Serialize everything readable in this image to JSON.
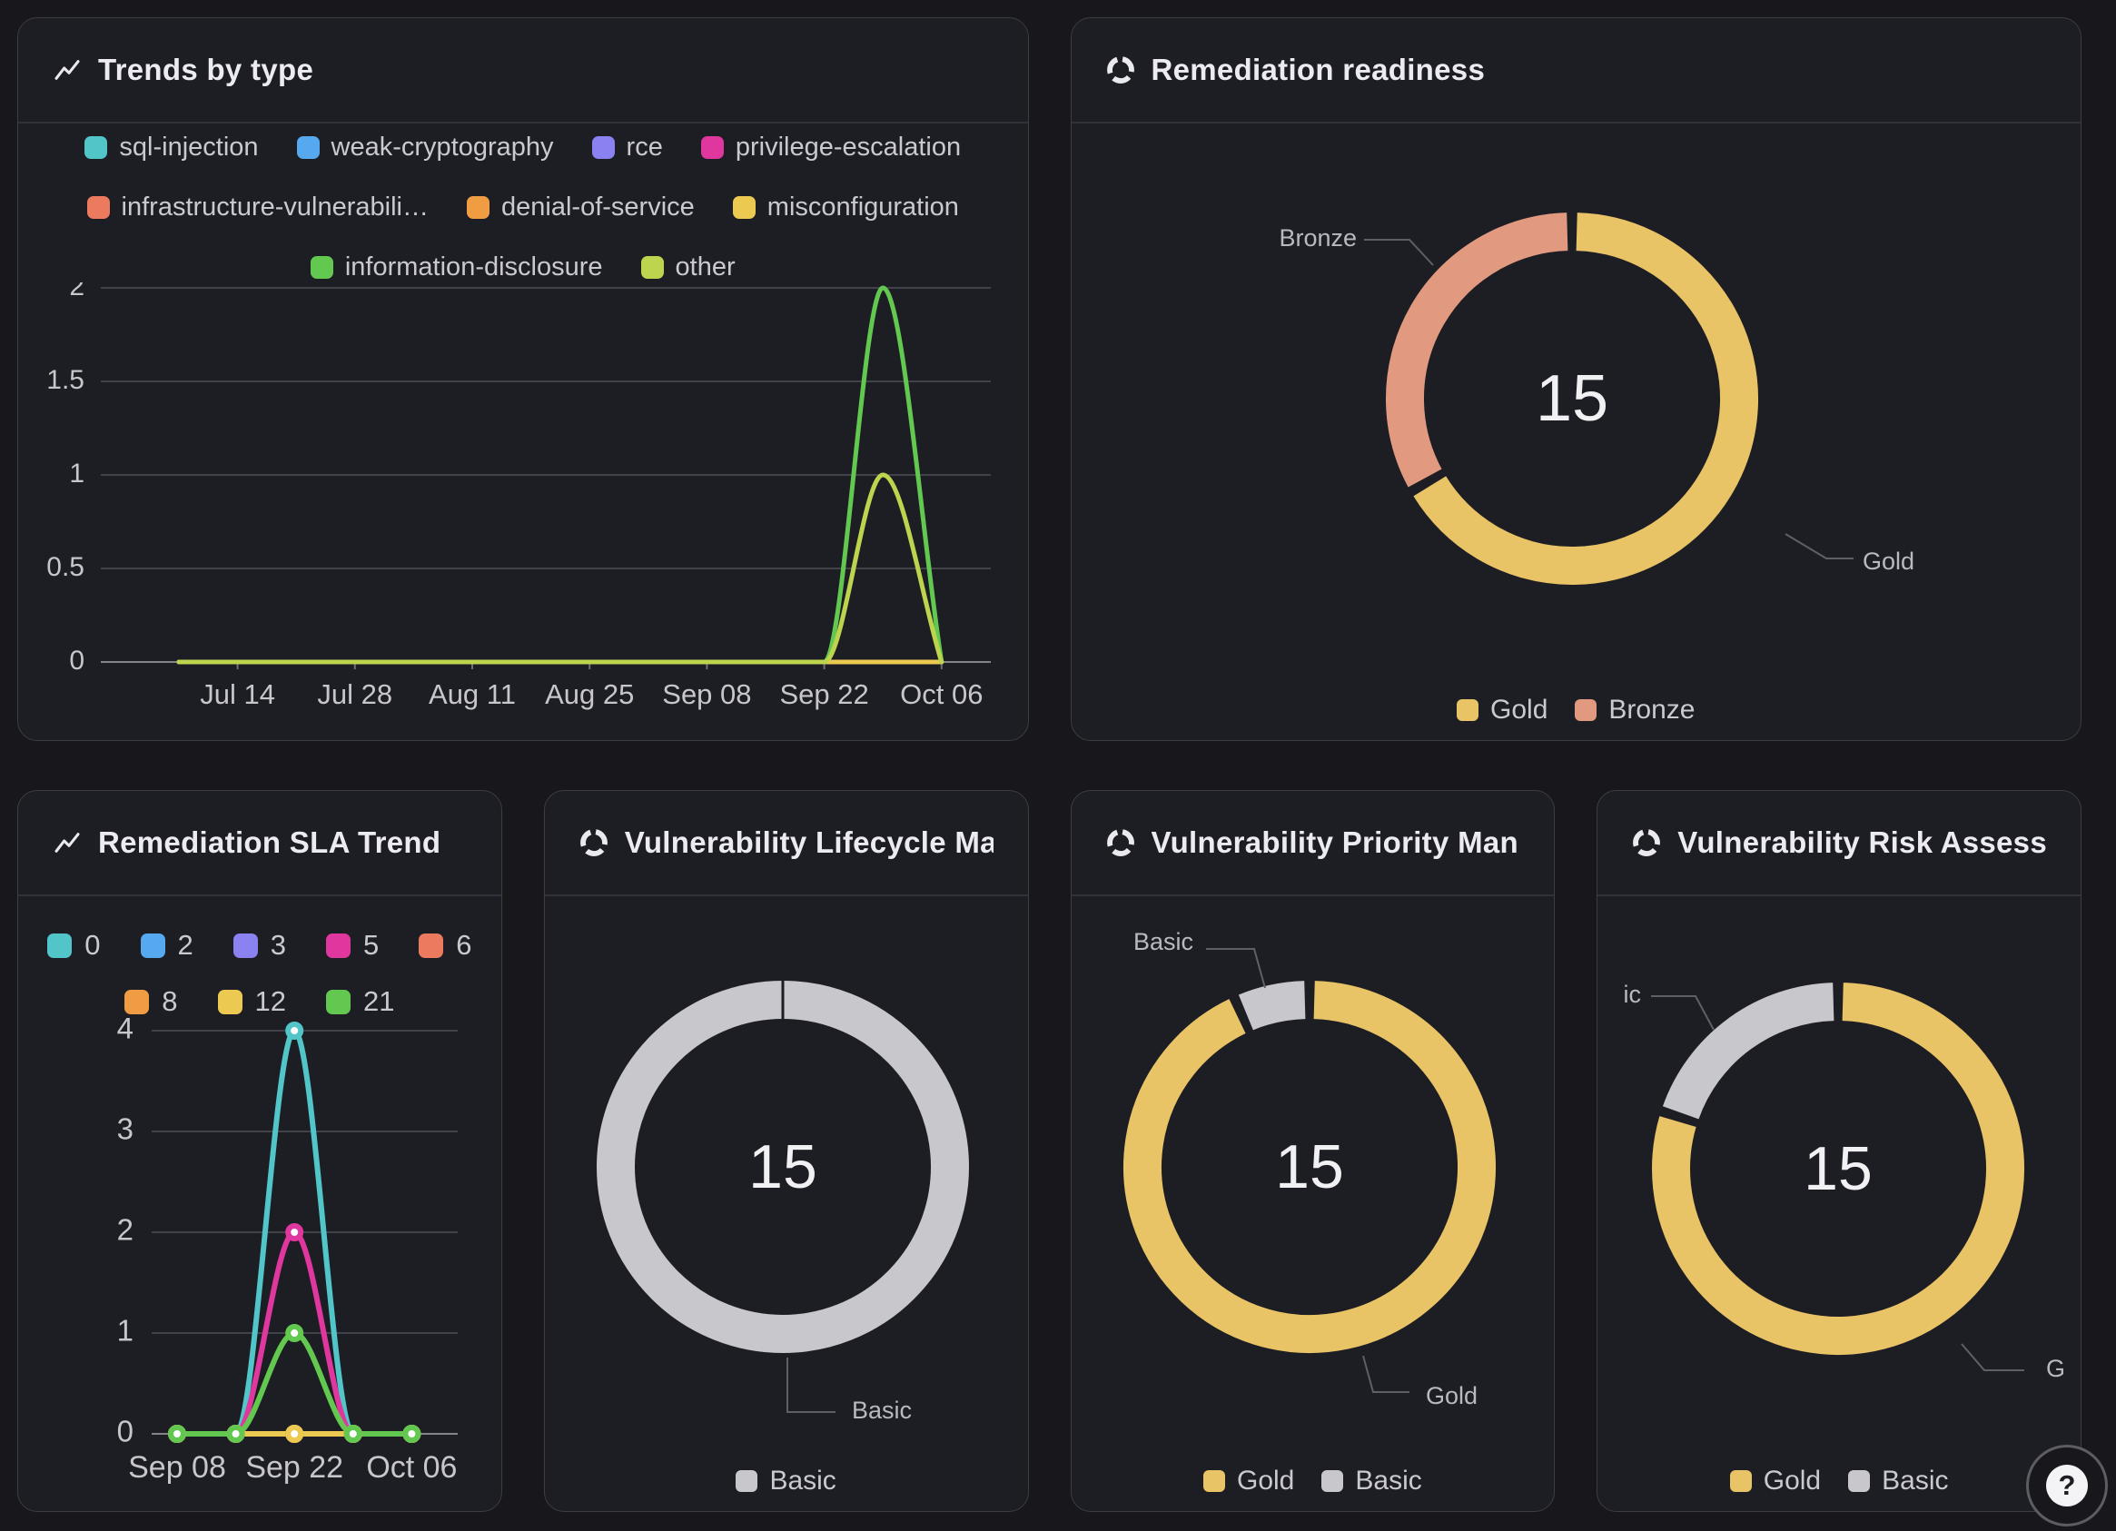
{
  "help_button": {
    "label": "?"
  },
  "truncated_callouts": {
    "risk_basic": "ic",
    "risk_gold": "G"
  },
  "chart_data": [
    {
      "id": "trends",
      "type": "line",
      "title": "Trends by type",
      "icon": "trend-line-icon",
      "x_points": [
        "Jul 07",
        "Jul 14",
        "Jul 21",
        "Jul 28",
        "Aug 04",
        "Aug 11",
        "Aug 18",
        "Aug 25",
        "Sep 01",
        "Sep 08",
        "Sep 15",
        "Sep 22",
        "Sep 29",
        "Oct 06"
      ],
      "x_tick_labels": [
        "Jul 14",
        "Jul 28",
        "Aug 11",
        "Aug 25",
        "Sep 08",
        "Sep 22",
        "Oct 06"
      ],
      "yticks": [
        0,
        0.5,
        1,
        1.5,
        2
      ],
      "ylim": [
        0,
        2
      ],
      "grid": true,
      "legend_position": "top",
      "series": [
        {
          "name": "sql-injection",
          "color": "#52c5c8",
          "values": [
            0,
            0,
            0,
            0,
            0,
            0,
            0,
            0,
            0,
            0,
            0,
            0,
            0,
            0
          ]
        },
        {
          "name": "weak-cryptography",
          "color": "#56a9ee",
          "values": [
            0,
            0,
            0,
            0,
            0,
            0,
            0,
            0,
            0,
            0,
            0,
            0,
            0,
            0
          ]
        },
        {
          "name": "rce",
          "color": "#8b82f2",
          "values": [
            0,
            0,
            0,
            0,
            0,
            0,
            0,
            0,
            0,
            0,
            0,
            0,
            0,
            0
          ]
        },
        {
          "name": "privilege-escalation",
          "color": "#e0379f",
          "values": [
            0,
            0,
            0,
            0,
            0,
            0,
            0,
            0,
            0,
            0,
            0,
            0,
            0,
            0
          ]
        },
        {
          "name": "infrastructure-vulnerabili…",
          "color": "#ec7a5e",
          "values": [
            0,
            0,
            0,
            0,
            0,
            0,
            0,
            0,
            0,
            0,
            0,
            0,
            0,
            0
          ]
        },
        {
          "name": "denial-of-service",
          "color": "#f09c43",
          "values": [
            0,
            0,
            0,
            0,
            0,
            0,
            0,
            0,
            0,
            0,
            0,
            0,
            0,
            0
          ]
        },
        {
          "name": "misconfiguration",
          "color": "#ecca52",
          "values": [
            0,
            0,
            0,
            0,
            0,
            0,
            0,
            0,
            0,
            0,
            0,
            0,
            0,
            0
          ]
        },
        {
          "name": "information-disclosure",
          "color": "#63c84f",
          "values": [
            0,
            0,
            0,
            0,
            0,
            0,
            0,
            0,
            0,
            0,
            0,
            0,
            2,
            0
          ]
        },
        {
          "name": "other",
          "color": "#bcd44e",
          "values": [
            0,
            0,
            0,
            0,
            0,
            0,
            0,
            0,
            0,
            0,
            0,
            0,
            1,
            0
          ]
        }
      ]
    },
    {
      "id": "readiness",
      "type": "donut",
      "title": "Remediation readiness",
      "icon": "donut-chart-icon",
      "center_value": "15",
      "segments": [
        {
          "label": "Gold",
          "value": 10,
          "color": "#e9c467"
        },
        {
          "label": "Bronze",
          "value": 5,
          "color": "#e19a80"
        }
      ],
      "legend": [
        "Gold",
        "Bronze"
      ]
    },
    {
      "id": "sla",
      "type": "line",
      "title": "Remediation SLA Trend",
      "icon": "trend-line-icon",
      "x_points": [
        "Sep 08",
        "Sep 15",
        "Sep 22",
        "Sep 29",
        "Oct 06"
      ],
      "x_tick_labels": [
        "Sep 08",
        "Sep 22",
        "Oct 06"
      ],
      "yticks": [
        0,
        1,
        2,
        3,
        4
      ],
      "ylim": [
        0,
        4
      ],
      "grid": true,
      "legend_position": "top",
      "series": [
        {
          "name": "0",
          "color": "#52c5c8",
          "values": [
            0,
            0,
            4,
            0,
            0
          ]
        },
        {
          "name": "2",
          "color": "#56a9ee",
          "values": [
            0,
            0,
            0,
            0,
            0
          ]
        },
        {
          "name": "3",
          "color": "#8b82f2",
          "values": [
            0,
            0,
            0,
            0,
            0
          ]
        },
        {
          "name": "5",
          "color": "#e0379f",
          "values": [
            0,
            0,
            2,
            0,
            0
          ]
        },
        {
          "name": "6",
          "color": "#ec7a5e",
          "values": [
            0,
            0,
            0,
            0,
            0
          ]
        },
        {
          "name": "8",
          "color": "#f09c43",
          "values": [
            0,
            0,
            0,
            0,
            0
          ]
        },
        {
          "name": "12",
          "color": "#ecca52",
          "values": [
            0,
            0,
            0,
            0,
            0
          ]
        },
        {
          "name": "21",
          "color": "#63c84f",
          "values": [
            0,
            0,
            1,
            0,
            0
          ]
        }
      ]
    },
    {
      "id": "lifecycle",
      "type": "donut",
      "title": "Vulnerability Lifecycle Ma…",
      "icon": "donut-chart-icon",
      "center_value": "15",
      "segments": [
        {
          "label": "Basic",
          "value": 15,
          "color": "#c8c8cc"
        }
      ],
      "legend": [
        "Basic"
      ]
    },
    {
      "id": "priority",
      "type": "donut",
      "title": "Vulnerability Priority Man…",
      "icon": "donut-chart-icon",
      "center_value": "15",
      "segments": [
        {
          "label": "Gold",
          "value": 14,
          "color": "#e9c467"
        },
        {
          "label": "Basic",
          "value": 1,
          "color": "#c8c8cc"
        }
      ],
      "legend": [
        "Gold",
        "Basic"
      ]
    },
    {
      "id": "risk",
      "type": "donut",
      "title": "Vulnerability Risk Assess…",
      "icon": "donut-chart-icon",
      "center_value": "15",
      "segments": [
        {
          "label": "Gold",
          "value": 12,
          "color": "#e9c467"
        },
        {
          "label": "Basic",
          "value": 3,
          "color": "#c8c8cc"
        }
      ],
      "legend": [
        "Gold",
        "Basic"
      ]
    }
  ]
}
